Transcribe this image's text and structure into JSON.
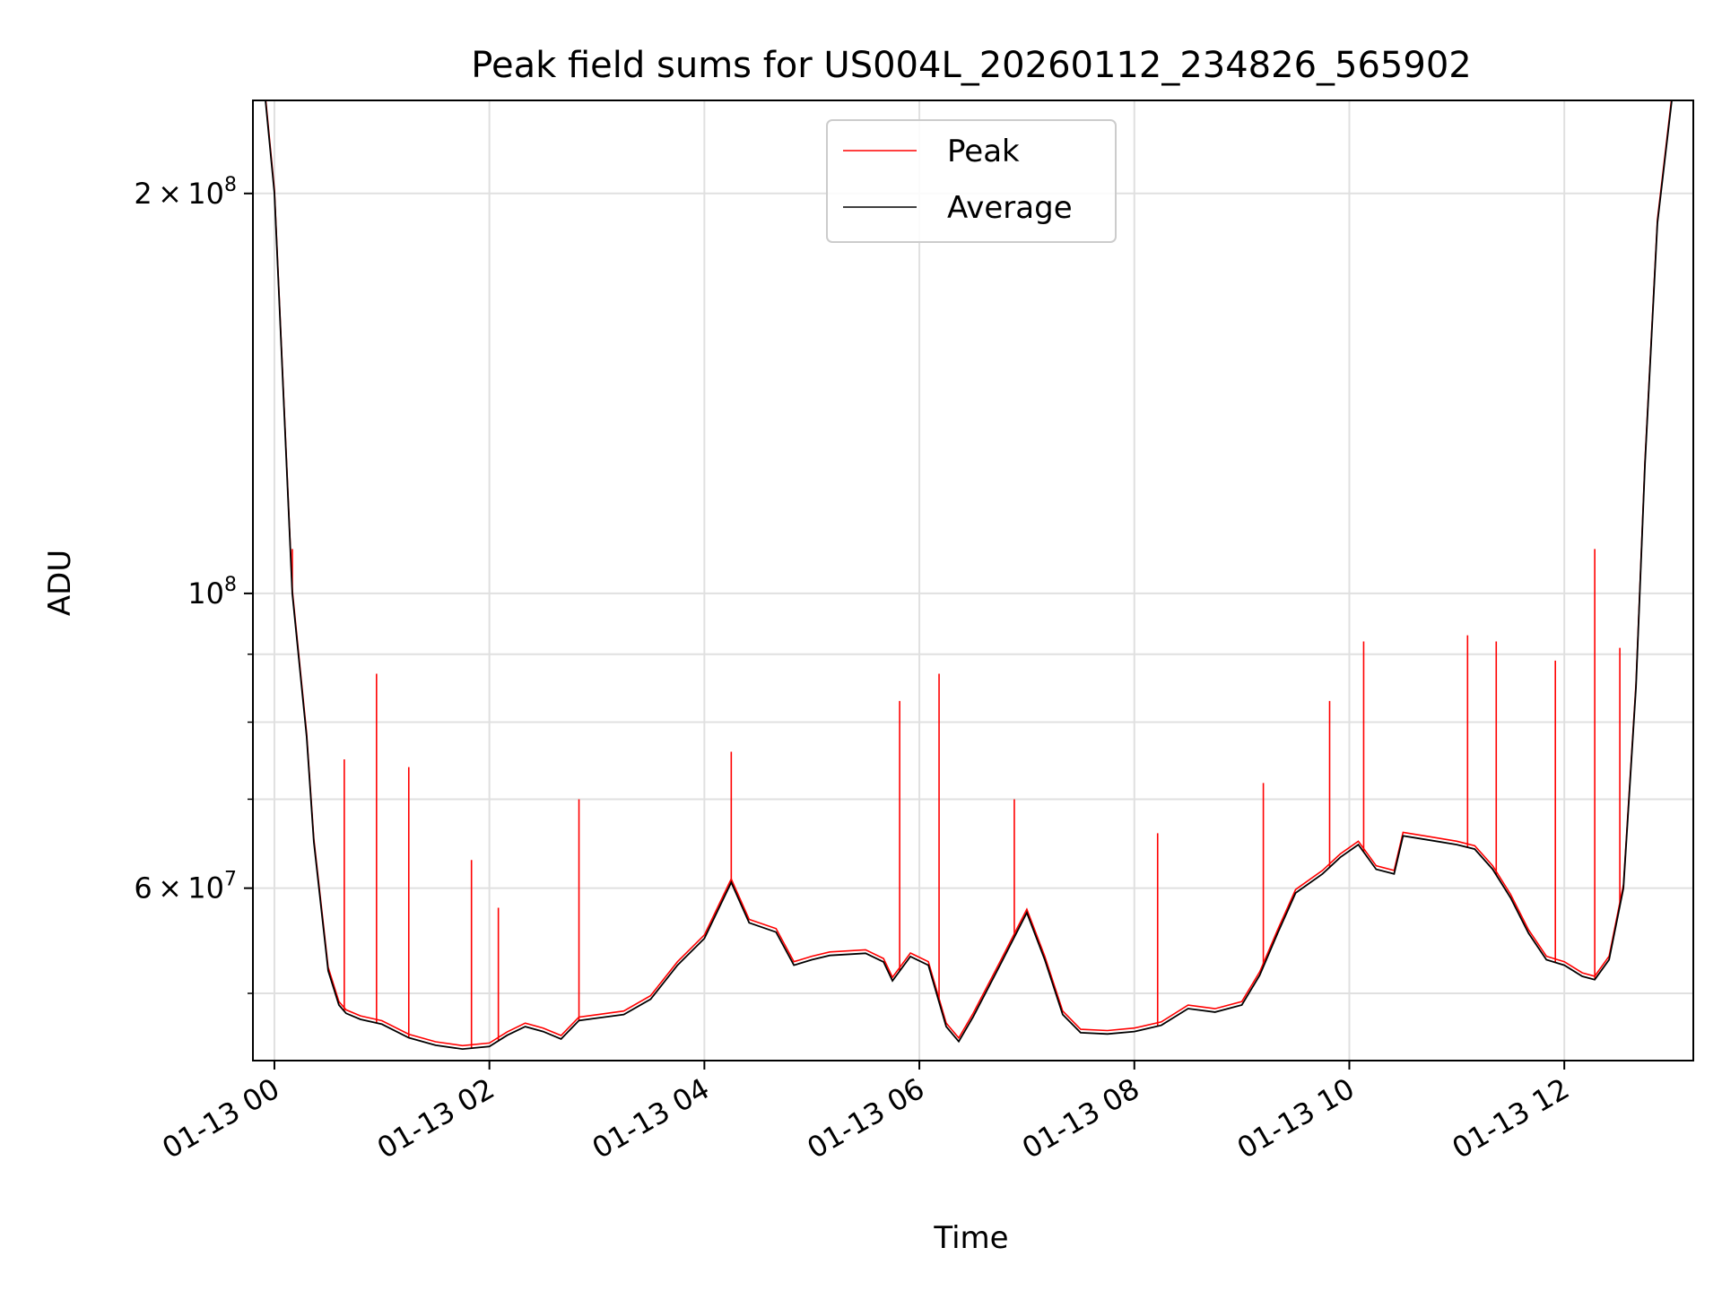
{
  "chart_data": {
    "type": "line",
    "title": "Peak field sums for US004L_20260112_234826_565902",
    "xlabel": "Time",
    "ylabel": "ADU",
    "xlim": [
      "2026-01-12 23:48",
      "2026-01-13 13:12"
    ],
    "ylim": [
      44500000,
      235000000
    ],
    "yscale": "log",
    "grid": true,
    "legend": {
      "position": "top-center",
      "entries": [
        "Peak",
        "Average"
      ]
    },
    "colors": {
      "Peak": "#ff0000",
      "Average": "#000000"
    },
    "x_tick_labels": [
      "01-13 00",
      "01-13 02",
      "01-13 04",
      "01-13 06",
      "01-13 08",
      "01-13 10",
      "01-13 12"
    ],
    "x_ticks": [
      "2026-01-13 00:00",
      "2026-01-13 02:00",
      "2026-01-13 04:00",
      "2026-01-13 06:00",
      "2026-01-13 08:00",
      "2026-01-13 10:00",
      "2026-01-13 12:00"
    ],
    "y_major_ticks": [
      {
        "value": 60000000,
        "mantissa": "6",
        "exp": "7"
      },
      {
        "value": 100000000,
        "mantissa": "",
        "exp": "8"
      },
      {
        "value": 200000000,
        "mantissa": "2",
        "exp": "8"
      }
    ],
    "y_minor_ticks": [
      50000000,
      70000000,
      80000000,
      90000000
    ],
    "series": [
      {
        "name": "Average",
        "x": [
          "2026-01-12 23:48",
          "2026-01-12 23:55",
          "2026-01-13 00:00",
          "2026-01-13 00:10",
          "2026-01-13 00:18",
          "2026-01-13 00:22",
          "2026-01-13 00:30",
          "2026-01-13 00:36",
          "2026-01-13 00:40",
          "2026-01-13 00:48",
          "2026-01-13 01:00",
          "2026-01-13 01:15",
          "2026-01-13 01:30",
          "2026-01-13 01:45",
          "2026-01-13 02:00",
          "2026-01-13 02:10",
          "2026-01-13 02:20",
          "2026-01-13 02:30",
          "2026-01-13 02:40",
          "2026-01-13 02:50",
          "2026-01-13 03:00",
          "2026-01-13 03:15",
          "2026-01-13 03:30",
          "2026-01-13 03:45",
          "2026-01-13 04:00",
          "2026-01-13 04:15",
          "2026-01-13 04:25",
          "2026-01-13 04:40",
          "2026-01-13 04:50",
          "2026-01-13 05:00",
          "2026-01-13 05:10",
          "2026-01-13 05:30",
          "2026-01-13 05:40",
          "2026-01-13 05:45",
          "2026-01-13 05:55",
          "2026-01-13 06:05",
          "2026-01-13 06:15",
          "2026-01-13 06:22",
          "2026-01-13 06:30",
          "2026-01-13 06:45",
          "2026-01-13 07:00",
          "2026-01-13 07:10",
          "2026-01-13 07:20",
          "2026-01-13 07:30",
          "2026-01-13 07:45",
          "2026-01-13 08:00",
          "2026-01-13 08:15",
          "2026-01-13 08:30",
          "2026-01-13 08:45",
          "2026-01-13 09:00",
          "2026-01-13 09:10",
          "2026-01-13 09:20",
          "2026-01-13 09:30",
          "2026-01-13 09:45",
          "2026-01-13 09:55",
          "2026-01-13 10:05",
          "2026-01-13 10:15",
          "2026-01-13 10:25",
          "2026-01-13 10:30",
          "2026-01-13 10:45",
          "2026-01-13 11:00",
          "2026-01-13 11:10",
          "2026-01-13 11:20",
          "2026-01-13 11:30",
          "2026-01-13 11:40",
          "2026-01-13 11:50",
          "2026-01-13 12:00",
          "2026-01-13 12:10",
          "2026-01-13 12:17",
          "2026-01-13 12:25",
          "2026-01-13 12:33",
          "2026-01-13 12:40",
          "2026-01-13 12:45",
          "2026-01-13 12:52",
          "2026-01-13 13:00",
          "2026-01-13 13:12"
        ],
        "values": [
          235000000,
          235000000,
          200000000,
          100000000,
          78000000,
          65000000,
          52000000,
          49000000,
          48300000,
          47800000,
          47400000,
          46300000,
          45700000,
          45400000,
          45600000,
          46500000,
          47200000,
          46800000,
          46200000,
          47700000,
          47900000,
          48200000,
          49500000,
          52500000,
          55000000,
          60600000,
          56500000,
          55600000,
          52500000,
          53000000,
          53400000,
          53600000,
          52800000,
          51100000,
          53300000,
          52500000,
          47200000,
          46000000,
          48000000,
          52500000,
          57500000,
          53000000,
          48200000,
          46700000,
          46600000,
          46800000,
          47300000,
          48700000,
          48400000,
          49000000,
          51600000,
          55500000,
          59500000,
          61500000,
          63300000,
          64700000,
          62000000,
          61500000,
          65700000,
          65200000,
          64700000,
          64200000,
          62000000,
          59000000,
          55500000,
          53000000,
          52500000,
          51500000,
          51200000,
          53000000,
          60000000,
          85000000,
          125000000,
          190000000,
          235000000,
          235000000
        ]
      },
      {
        "name": "Peak",
        "spikes": [
          {
            "x": "2026-01-13 00:10",
            "y": 108000000
          },
          {
            "x": "2026-01-13 00:39",
            "y": 75000000
          },
          {
            "x": "2026-01-13 00:57",
            "y": 87000000
          },
          {
            "x": "2026-01-13 01:15",
            "y": 74000000
          },
          {
            "x": "2026-01-13 01:50",
            "y": 63000000
          },
          {
            "x": "2026-01-13 02:05",
            "y": 58000000
          },
          {
            "x": "2026-01-13 02:50",
            "y": 70000000
          },
          {
            "x": "2026-01-13 04:15",
            "y": 76000000
          },
          {
            "x": "2026-01-13 05:49",
            "y": 83000000
          },
          {
            "x": "2026-01-13 06:11",
            "y": 87000000
          },
          {
            "x": "2026-01-13 06:53",
            "y": 70000000
          },
          {
            "x": "2026-01-13 08:13",
            "y": 66000000
          },
          {
            "x": "2026-01-13 09:12",
            "y": 72000000
          },
          {
            "x": "2026-01-13 09:49",
            "y": 83000000
          },
          {
            "x": "2026-01-13 10:08",
            "y": 92000000
          },
          {
            "x": "2026-01-13 11:06",
            "y": 93000000
          },
          {
            "x": "2026-01-13 11:22",
            "y": 92000000
          },
          {
            "x": "2026-01-13 11:55",
            "y": 89000000
          },
          {
            "x": "2026-01-13 12:17",
            "y": 108000000
          },
          {
            "x": "2026-01-13 12:31",
            "y": 91000000
          }
        ]
      }
    ]
  }
}
